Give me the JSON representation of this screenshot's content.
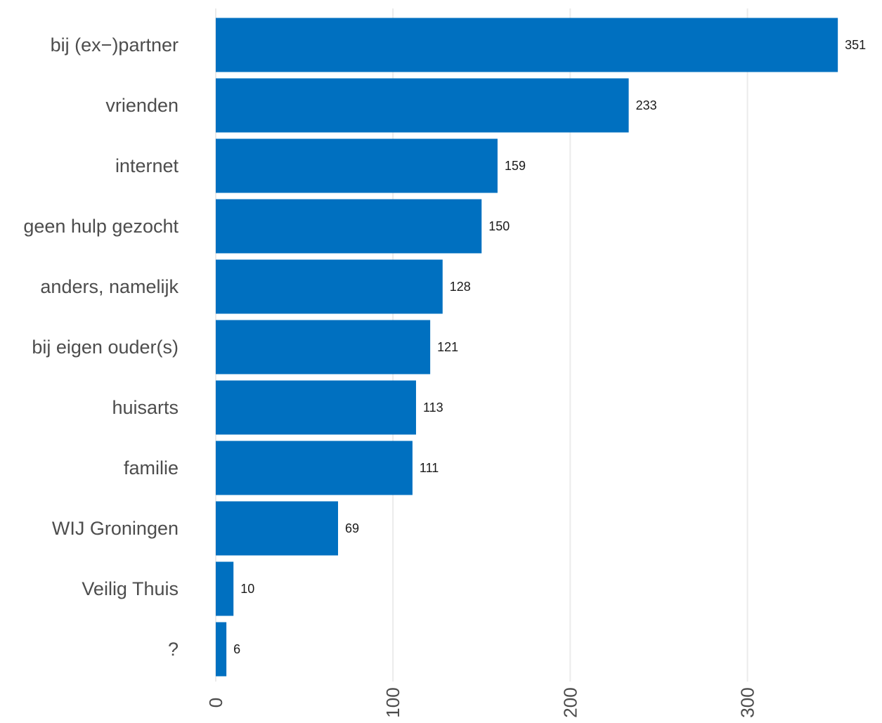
{
  "chart_data": {
    "type": "bar",
    "orientation": "horizontal",
    "categories": [
      "bij (ex−)partner",
      "vrienden",
      "internet",
      "geen hulp gezocht",
      "anders, namelijk",
      "bij eigen ouder(s)",
      "huisarts",
      "familie",
      "WIJ Groningen",
      "Veilig Thuis",
      "?"
    ],
    "values": [
      351,
      233,
      159,
      150,
      128,
      121,
      113,
      111,
      69,
      10,
      6
    ],
    "data_labels": [
      "351",
      "233",
      "159",
      "150",
      "128",
      "121",
      "113",
      "111",
      "69",
      "10",
      "6"
    ],
    "title": "",
    "xlabel": "",
    "ylabel": "",
    "xlim": [
      0,
      351
    ],
    "x_ticks": [
      0,
      100,
      200,
      300
    ],
    "x_tick_labels": [
      "0",
      "100",
      "200",
      "300"
    ],
    "x_tick_label_rotation": "vertical",
    "grid": "vertical major gridlines",
    "legend": "none",
    "colors": {
      "bar": "#0070c0",
      "grid": "#ebebeb",
      "label_text": "#4d4d4d",
      "value_text": "#1a1a1a"
    }
  }
}
